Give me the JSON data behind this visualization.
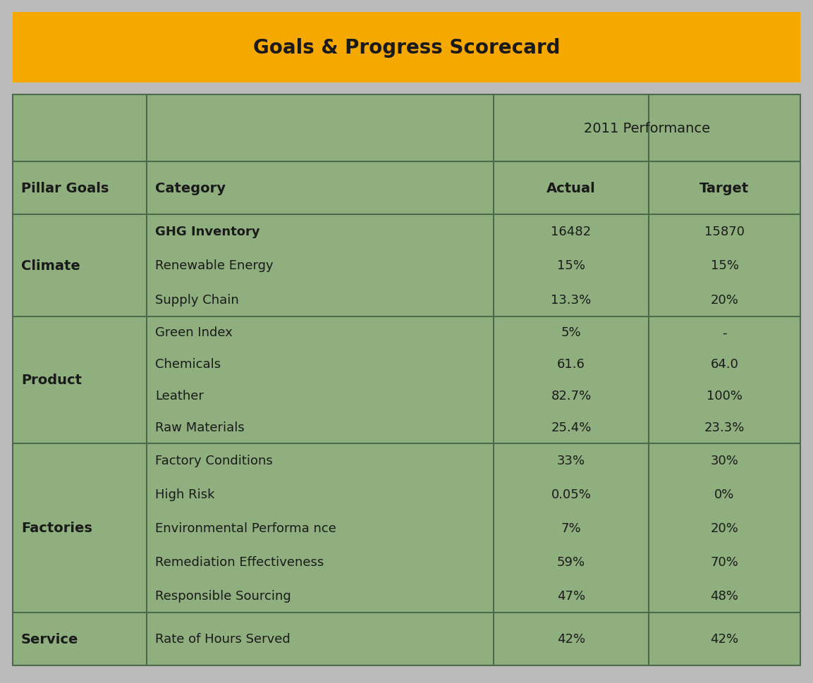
{
  "title": "Goals & Progress Scorecard",
  "title_bg_color": "#F5A800",
  "title_text_color": "#1a1a1a",
  "table_bg_color": "#8FAF7E",
  "outer_bg_color": "#BBBBBB",
  "rows": [
    {
      "pillar": "Climate",
      "categories": [
        "GHG Inventory",
        "Renewable Energy",
        "Supply Chain"
      ],
      "category_bold": [
        true,
        false,
        false
      ],
      "actuals": [
        "16482",
        "15%",
        "13.3%"
      ],
      "targets": [
        "15870",
        "15%",
        "20%"
      ]
    },
    {
      "pillar": "Product",
      "categories": [
        "Green Index",
        "Chemicals",
        "Leather",
        "Raw Materials"
      ],
      "category_bold": [
        false,
        false,
        false,
        false
      ],
      "actuals": [
        "5%",
        "61.6",
        "82.7%",
        "25.4%"
      ],
      "targets": [
        "-",
        "64.0",
        "100%",
        "23.3%"
      ]
    },
    {
      "pillar": "Factories",
      "categories": [
        "Factory Conditions",
        "High Risk",
        "Environmental Performa nce",
        "Remediation Effectiveness",
        "Responsible Sourcing"
      ],
      "category_bold": [
        false,
        false,
        false,
        false,
        false
      ],
      "actuals": [
        "33%",
        "0.05%",
        "7%",
        "59%",
        "47%"
      ],
      "targets": [
        "30%",
        "0%",
        "20%",
        "70%",
        "48%"
      ]
    },
    {
      "pillar": "Service",
      "categories": [
        "Rate of Hours Served"
      ],
      "category_bold": [
        false
      ],
      "actuals": [
        "42%"
      ],
      "targets": [
        "42%"
      ]
    }
  ],
  "text_color": "#1a1a1a",
  "line_color": "#4a6a4a",
  "title_font_size": 20,
  "header_font_size": 14,
  "body_font_size": 13,
  "pillar_font_size": 14
}
